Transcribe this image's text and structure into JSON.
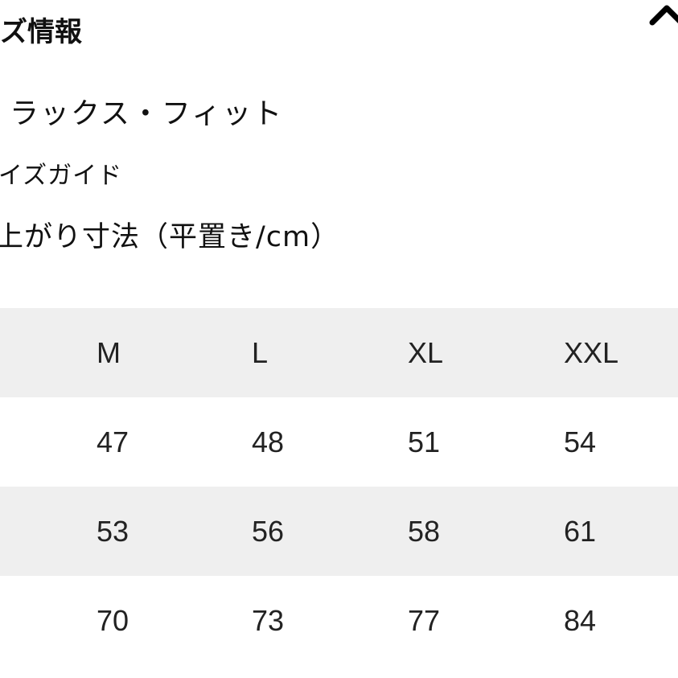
{
  "heading": "ズ情報",
  "fit": "ラックス・フィット",
  "size_guide_link": "イズガイド",
  "dimensions_label": "上がり寸法（平置き/cm）",
  "collapse_icon": "chevron-up-icon",
  "table": {
    "header": [
      "M",
      "L",
      "XL",
      "XXL"
    ],
    "rows": [
      [
        "47",
        "48",
        "51",
        "54"
      ],
      [
        "53",
        "56",
        "58",
        "61"
      ],
      [
        "70",
        "73",
        "77",
        "84"
      ]
    ]
  },
  "colors": {
    "stripe": "#efefef",
    "text": "#111111"
  }
}
